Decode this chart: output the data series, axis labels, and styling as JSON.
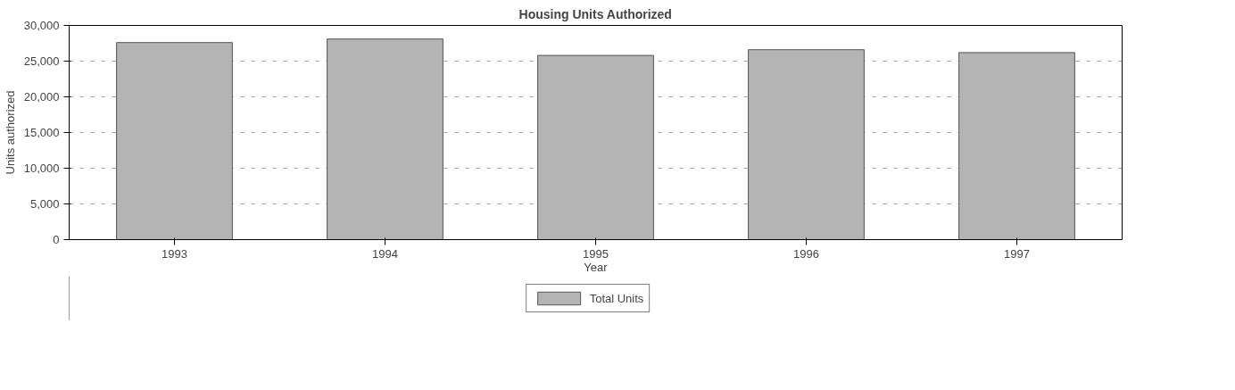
{
  "chart_data": {
    "type": "bar",
    "title": "Housing Units Authorized",
    "xlabel": "Year",
    "ylabel": "Units authorized",
    "categories": [
      "1993",
      "1994",
      "1995",
      "1996",
      "1997"
    ],
    "series": [
      {
        "name": "Total Units",
        "color": "#b4b4b4",
        "values": [
          27600,
          28100,
          25800,
          26600,
          26200
        ]
      }
    ],
    "ylim": [
      0,
      30000
    ],
    "yticks": [
      {
        "value": 0,
        "label": "0"
      },
      {
        "value": 5000,
        "label": "5,000"
      },
      {
        "value": 10000,
        "label": "10,000"
      },
      {
        "value": 15000,
        "label": "15,000"
      },
      {
        "value": 20000,
        "label": "20,000"
      },
      {
        "value": 25000,
        "label": "25,000"
      },
      {
        "value": 30000,
        "label": "30,000"
      }
    ],
    "grid": "y",
    "legend": "bottom"
  }
}
